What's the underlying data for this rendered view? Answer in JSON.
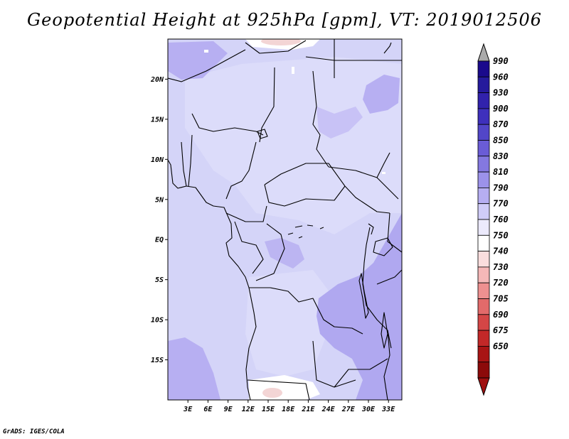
{
  "title": "Geopotential Height at 925hPa [gpm], VT: 2019012506",
  "credit": "GrADS: IGES/COLA",
  "map": {
    "lon_range": [
      0,
      35
    ],
    "lat_range": [
      -20,
      25
    ],
    "lat_ticks": [
      {
        "value": 20,
        "label": "20N"
      },
      {
        "value": 15,
        "label": "15N"
      },
      {
        "value": 10,
        "label": "10N"
      },
      {
        "value": 5,
        "label": "5N"
      },
      {
        "value": 0,
        "label": "EQ"
      },
      {
        "value": -5,
        "label": "5S"
      },
      {
        "value": -10,
        "label": "10S"
      },
      {
        "value": -15,
        "label": "15S"
      }
    ],
    "lon_ticks": [
      {
        "value": 3,
        "label": "3E"
      },
      {
        "value": 6,
        "label": "6E"
      },
      {
        "value": 9,
        "label": "9E"
      },
      {
        "value": 12,
        "label": "12E"
      },
      {
        "value": 15,
        "label": "15E"
      },
      {
        "value": 18,
        "label": "18E"
      },
      {
        "value": 21,
        "label": "21E"
      },
      {
        "value": 24,
        "label": "24E"
      },
      {
        "value": 27,
        "label": "27E"
      },
      {
        "value": 30,
        "label": "30E"
      },
      {
        "value": 33,
        "label": "33E"
      }
    ],
    "colors": {
      "background_field": "#d2d2f8",
      "field_770_790": "#dcdcfa",
      "field_790_810": "#b9b2f2",
      "field_810_830": "#a79cec",
      "white_gap": "#ffffff",
      "low_760_750": "#f5d8d8",
      "border_line": "#000000"
    }
  },
  "colorbar": {
    "levels": [
      "990",
      "960",
      "930",
      "900",
      "870",
      "850",
      "830",
      "810",
      "790",
      "770",
      "760",
      "750",
      "740",
      "730",
      "720",
      "705",
      "690",
      "675",
      "650"
    ],
    "colors": [
      "#1a0a8c",
      "#251a9c",
      "#3122ac",
      "#3e30bc",
      "#5246c8",
      "#6a5cd6",
      "#8478e0",
      "#9c92ea",
      "#b6aef2",
      "#d0ccf8",
      "#eceafc",
      "#ffffff",
      "#fadede",
      "#f5b8b8",
      "#ee9090",
      "#e26a6a",
      "#d44646",
      "#c22828",
      "#a81414",
      "#8c0a0a"
    ],
    "top_arrow_color": "#aaaaaa",
    "bottom_arrow_color": "#a01010"
  }
}
